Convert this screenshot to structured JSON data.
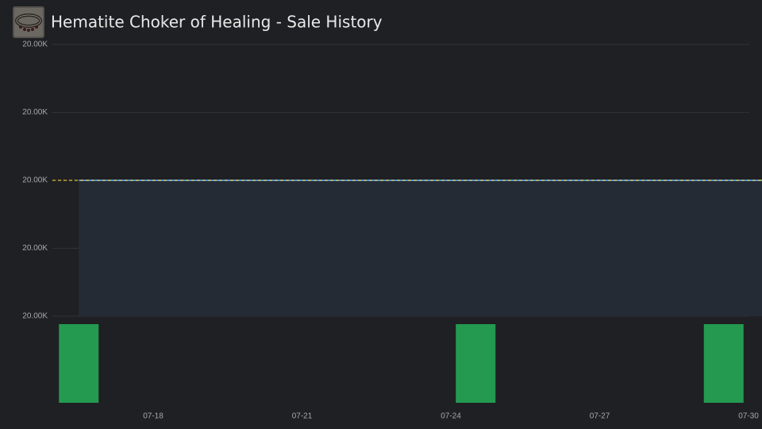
{
  "title": "Hematite Choker of Healing - Sale History",
  "chart_data": [
    {
      "type": "line",
      "x": [
        "07-16",
        "07-30"
      ],
      "series": [
        {
          "color": "#4a8fe0",
          "values": [
            20000,
            20000
          ]
        }
      ],
      "area_color": "#252b35",
      "reference_line": {
        "value": 20000,
        "color": "#e0c030"
      },
      "xlim": [
        "07-16",
        "07-30"
      ],
      "ylim": [
        19998,
        20002
      ],
      "yticks": [
        {
          "value": 19998,
          "label": "20.00K"
        },
        {
          "value": 19999,
          "label": "20.00K"
        },
        {
          "value": 20000,
          "label": "20.00K"
        },
        {
          "value": 20001,
          "label": "20.00K"
        },
        {
          "value": 20002,
          "label": "20.00K"
        }
      ],
      "grid": true
    },
    {
      "type": "bar",
      "x": [
        "07-16",
        "07-24",
        "07-29"
      ],
      "values": [
        1,
        1,
        1
      ],
      "color": "#239a50",
      "xlim": [
        "07-16",
        "07-30"
      ],
      "ylim": [
        0,
        1
      ],
      "xticks": [
        "07-18",
        "07-21",
        "07-24",
        "07-27",
        "07-30"
      ]
    }
  ]
}
